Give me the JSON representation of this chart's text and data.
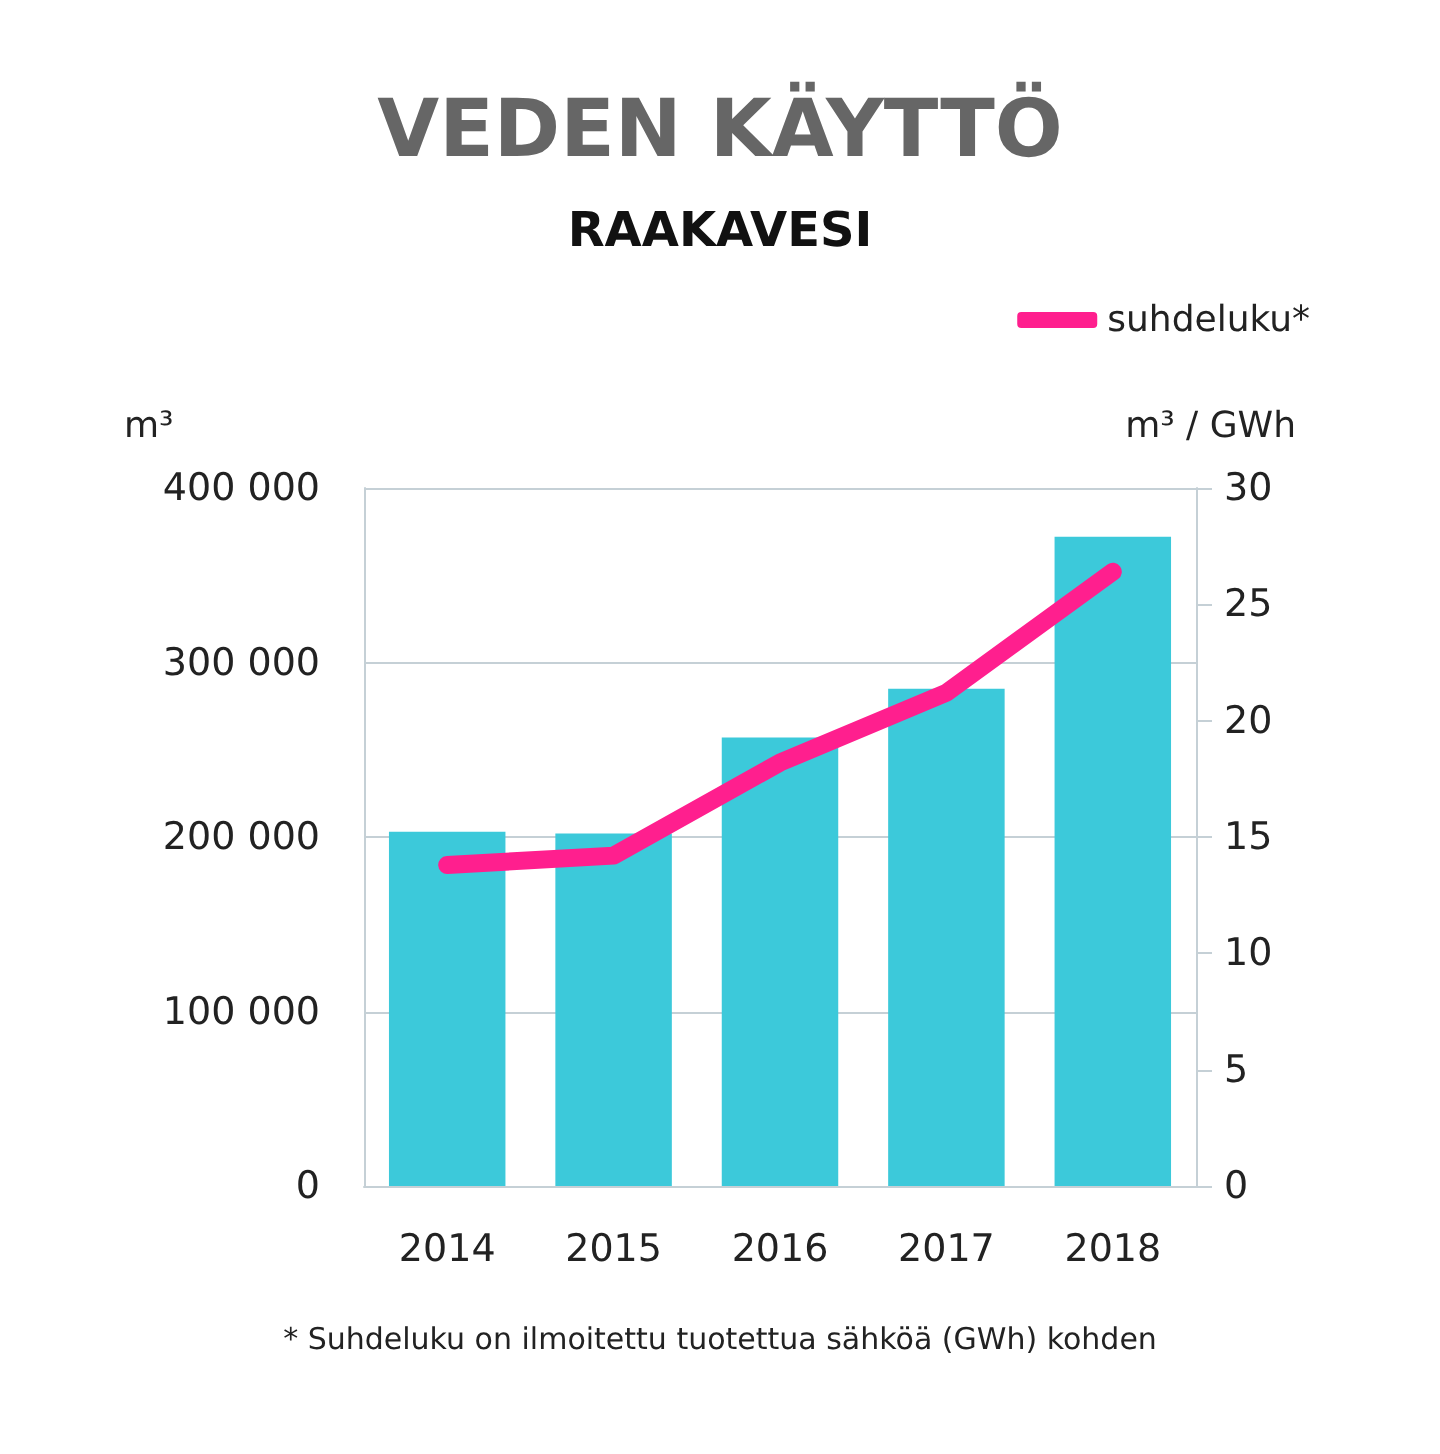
{
  "chart_data": {
    "type": "bar",
    "title": "VEDEN KÄYTTÖ",
    "subtitle": "RAAKAVESI",
    "ylabel": "m³",
    "y2label": "m³ / GWh",
    "categories": [
      "2014",
      "2015",
      "2016",
      "2017",
      "2018"
    ],
    "series": [
      {
        "color": "#3cc9da",
        "values": [
          203000,
          202000,
          257000,
          285000,
          372000
        ]
      },
      {
        "type": "line",
        "name": "suhdeluku*",
        "color": "#ff1f8e",
        "axis": "y2",
        "values": [
          13.8,
          14.2,
          18.2,
          21.2,
          26.4
        ]
      }
    ],
    "ylim": [
      0,
      400000
    ],
    "yticks": [
      {
        "value": 0,
        "label": "0"
      },
      {
        "value": 100000,
        "label": "100 000"
      },
      {
        "value": 200000,
        "label": "200 000"
      },
      {
        "value": 300000,
        "label": "300 000"
      },
      {
        "value": 400000,
        "label": "400 000"
      }
    ],
    "y2lim": [
      0,
      30
    ],
    "y2ticks": [
      0,
      5,
      10,
      15,
      20,
      25,
      30
    ],
    "grid": "y",
    "legend": "top right",
    "line_style": "solid",
    "annotations": [
      "* Suhdeluku on ilmoitettu tuotettua sähköä (GWh) kohden"
    ]
  }
}
